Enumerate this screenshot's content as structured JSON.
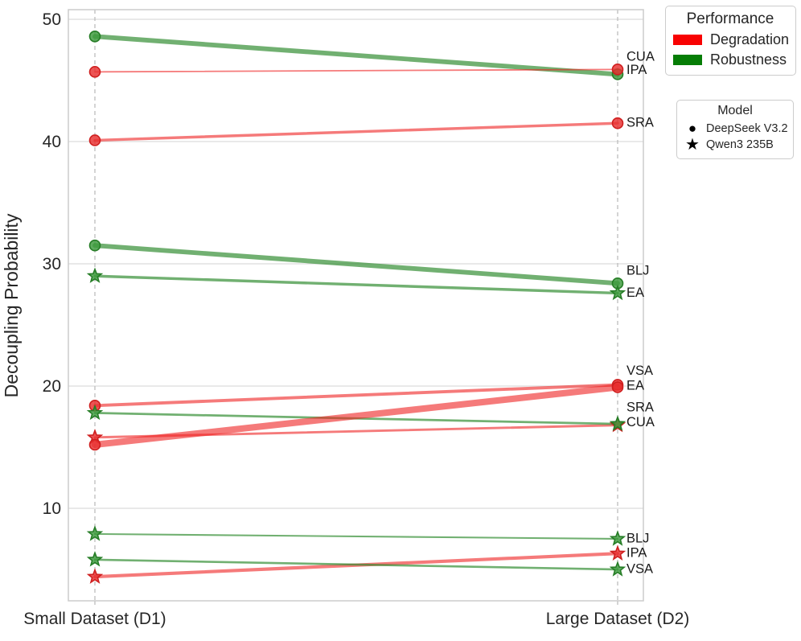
{
  "chart_data": {
    "type": "slope",
    "title": "",
    "ylabel": "Decoupling Probability",
    "x_categories": [
      "Small Dataset (D1)",
      "Large Dataset (D2)"
    ],
    "yticks": [
      10,
      20,
      30,
      40,
      50
    ],
    "ylim": [
      2.4,
      50.7
    ],
    "grid": true,
    "legend_position": "outside-right",
    "series": [
      {
        "method": "CUA",
        "model": "DeepSeek V3.2",
        "marker": "circle",
        "performance": "Robustness",
        "values": [
          48.6,
          45.5
        ],
        "label_y": 46.9
      },
      {
        "method": "IPA",
        "model": "DeepSeek V3.2",
        "marker": "circle",
        "performance": "Degradation",
        "values": [
          45.7,
          45.9
        ],
        "label_y": 45.8
      },
      {
        "method": "SRA",
        "model": "DeepSeek V3.2",
        "marker": "circle",
        "performance": "Degradation",
        "values": [
          40.1,
          41.5
        ],
        "label_y": 41.5
      },
      {
        "method": "BLJ",
        "model": "DeepSeek V3.2",
        "marker": "circle",
        "performance": "Robustness",
        "values": [
          31.5,
          28.4
        ],
        "label_y": 29.4
      },
      {
        "method": "EA",
        "model": "Qwen3 235B",
        "marker": "star",
        "performance": "Robustness",
        "values": [
          29.0,
          27.6
        ],
        "label_y": 27.6
      },
      {
        "method": "VSA",
        "model": "DeepSeek V3.2",
        "marker": "circle",
        "performance": "Degradation",
        "values": [
          18.4,
          20.1
        ],
        "label_y": 21.2
      },
      {
        "method": "CUA",
        "model": "Qwen3 235B",
        "marker": "star",
        "performance": "Degradation",
        "values": [
          15.8,
          16.8
        ],
        "label_y": 17.0
      },
      {
        "method": "SRA",
        "model": "Qwen3 235B",
        "marker": "star",
        "performance": "Robustness",
        "values": [
          17.8,
          16.9
        ],
        "label_y": 18.2
      },
      {
        "method": "EA",
        "model": "DeepSeek V3.2",
        "marker": "circle",
        "performance": "Degradation",
        "values": [
          15.2,
          19.9
        ],
        "label_y": 20.0
      },
      {
        "method": "BLJ",
        "model": "Qwen3 235B",
        "marker": "star",
        "performance": "Robustness",
        "values": [
          7.9,
          7.5
        ],
        "label_y": 7.5
      },
      {
        "method": "IPA",
        "model": "Qwen3 235B",
        "marker": "star",
        "performance": "Degradation",
        "values": [
          4.4,
          6.3
        ],
        "label_y": 6.3
      },
      {
        "method": "VSA",
        "model": "Qwen3 235B",
        "marker": "star",
        "performance": "Robustness",
        "values": [
          5.8,
          5.0
        ],
        "label_y": 5.0
      }
    ]
  },
  "legends": {
    "performance": {
      "title": "Performance",
      "items": [
        {
          "label": "Degradation",
          "color": "#f80202"
        },
        {
          "label": "Robustness",
          "color": "#067d06"
        }
      ]
    },
    "model": {
      "title": "Model",
      "items": [
        {
          "label": "DeepSeek V3.2",
          "glyph": "●",
          "marker": "circle"
        },
        {
          "label": "Qwen3 235B",
          "glyph": "★",
          "marker": "star"
        }
      ]
    }
  },
  "colors": {
    "degradation_line": "#ee2222",
    "robustness_line": "#2e8b2e",
    "degradation_marker": "#e82e2e",
    "degradation_marker_edge": "#cf1f1f",
    "robustness_marker": "#3c9a3c",
    "robustness_marker_edge": "#267d26",
    "grid": "#dcdcdc",
    "axis_border": "#cccccc",
    "category_line": "#b8b8b8",
    "text": "#262626"
  }
}
